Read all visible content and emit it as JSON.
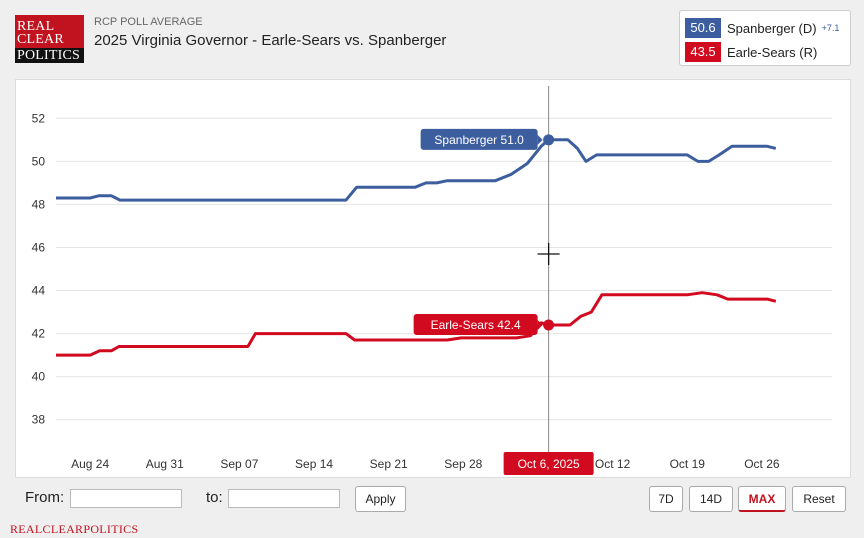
{
  "header": {
    "logo": {
      "line1": "REAL",
      "line2": "CLEAR",
      "line3": "POLITICS"
    },
    "subtitle": "RCP POLL AVERAGE",
    "title": "2025 Virginia Governor - Earle-Sears vs. Spanberger"
  },
  "legend": [
    {
      "value": "50.6",
      "name": "Spanberger (D)",
      "spread": "+7.1",
      "color": "#3d5e9e"
    },
    {
      "value": "43.5",
      "name": "Earle-Sears (R)",
      "spread": "",
      "color": "#d10a1f"
    }
  ],
  "chart_data": {
    "type": "line",
    "title": "2025 Virginia Governor - Earle-Sears vs. Spanberger",
    "ylim": [
      36.5,
      53.5
    ],
    "y_ticks": [
      38,
      40,
      42,
      44,
      46,
      48,
      50,
      52
    ],
    "xlim": [
      -3.2,
      69.2
    ],
    "x_ticks": [
      {
        "x": 0,
        "label": "Aug 24"
      },
      {
        "x": 7,
        "label": "Aug 31"
      },
      {
        "x": 14,
        "label": "Sep 07"
      },
      {
        "x": 21,
        "label": "Sep 14"
      },
      {
        "x": 28,
        "label": "Sep 21"
      },
      {
        "x": 35,
        "label": "Sep 28"
      },
      {
        "x": 49,
        "label": "Oct 12"
      },
      {
        "x": 56,
        "label": "Oct 19"
      },
      {
        "x": 63,
        "label": "Oct 26"
      }
    ],
    "crosshair": {
      "x": 43,
      "label": "Oct 6, 2025"
    },
    "series": [
      {
        "name": "Spanberger",
        "color": "#3d5e9e",
        "tooltip": "Spanberger 51.0",
        "tooltip_value": 51.0,
        "points": [
          [
            -5,
            48.3
          ],
          [
            0,
            48.3
          ],
          [
            0.8,
            48.4
          ],
          [
            2,
            48.4
          ],
          [
            2.8,
            48.2
          ],
          [
            12,
            48.2
          ],
          [
            24,
            48.2
          ],
          [
            25,
            48.8
          ],
          [
            30.5,
            48.8
          ],
          [
            31.5,
            49.0
          ],
          [
            32.5,
            49.0
          ],
          [
            33.5,
            49.1
          ],
          [
            38,
            49.1
          ],
          [
            39.5,
            49.4
          ],
          [
            41,
            49.9
          ],
          [
            42.3,
            50.7
          ],
          [
            43,
            51.0
          ],
          [
            44.8,
            51.0
          ],
          [
            45.7,
            50.6
          ],
          [
            46.5,
            50.0
          ],
          [
            47.5,
            50.3
          ],
          [
            52,
            50.3
          ],
          [
            56,
            50.3
          ],
          [
            57,
            50.0
          ],
          [
            58,
            50.0
          ],
          [
            59,
            50.3
          ],
          [
            60.2,
            50.7
          ],
          [
            63.5,
            50.7
          ],
          [
            64.3,
            50.6
          ]
        ]
      },
      {
        "name": "Earle-Sears",
        "color": "#d10a1f",
        "tooltip": "Earle-Sears 42.4",
        "tooltip_value": 42.4,
        "points": [
          [
            -5,
            41.0
          ],
          [
            0,
            41.0
          ],
          [
            0.9,
            41.2
          ],
          [
            2,
            41.2
          ],
          [
            2.7,
            41.4
          ],
          [
            12,
            41.4
          ],
          [
            14.8,
            41.4
          ],
          [
            15.5,
            42.0
          ],
          [
            24,
            42.0
          ],
          [
            24.8,
            41.7
          ],
          [
            33.5,
            41.7
          ],
          [
            34.8,
            41.8
          ],
          [
            40,
            41.8
          ],
          [
            41.3,
            41.9
          ],
          [
            42.3,
            42.5
          ],
          [
            43,
            42.4
          ],
          [
            45,
            42.4
          ],
          [
            46,
            42.8
          ],
          [
            47,
            43.0
          ],
          [
            48,
            43.8
          ],
          [
            52,
            43.8
          ],
          [
            56,
            43.8
          ],
          [
            57.4,
            43.9
          ],
          [
            58.8,
            43.8
          ],
          [
            59.8,
            43.6
          ],
          [
            63.5,
            43.6
          ],
          [
            64.3,
            43.5
          ]
        ]
      }
    ]
  },
  "controls": {
    "from_label": "From:",
    "to_label": "to:",
    "from_value": "",
    "to_value": "",
    "apply_label": "Apply",
    "range_buttons": [
      "7D",
      "14D",
      "MAX"
    ],
    "active_range": "MAX",
    "reset_label": "Reset"
  },
  "footer": {
    "brand": "REALCLEARPOLITICS"
  }
}
